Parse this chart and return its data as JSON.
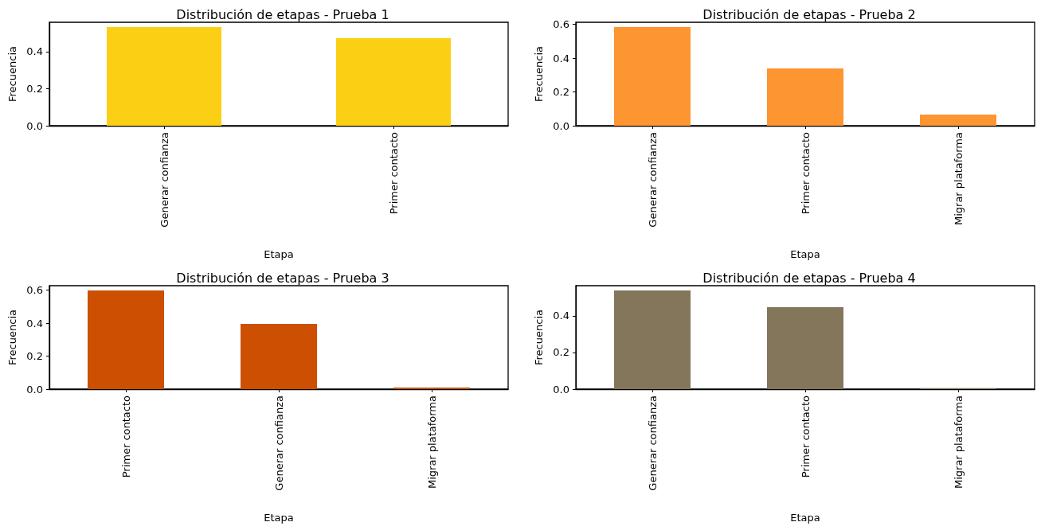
{
  "chart_data": [
    {
      "type": "bar",
      "title": "Distribución de etapas - Prueba 1",
      "xlabel": "Etapa",
      "ylabel": "Frecuencia",
      "categories": [
        "Generar confianza",
        "Primer contacto"
      ],
      "values": [
        0.533,
        0.473
      ],
      "color": "#fbcf14",
      "ylim": [
        0,
        0.559
      ],
      "yticks": [
        {
          "value": 0,
          "label": "0.0"
        },
        {
          "value": 0.2,
          "label": "0.2"
        },
        {
          "value": 0.4,
          "label": "0.4"
        }
      ]
    },
    {
      "type": "bar",
      "title": "Distribución de etapas - Prueba 2",
      "xlabel": "Etapa",
      "ylabel": "Frecuencia",
      "categories": [
        "Generar confianza",
        "Primer contacto",
        "Migrar plataforma"
      ],
      "values": [
        0.584,
        0.339,
        0.066
      ],
      "color": "#fd9531",
      "ylim": [
        0,
        0.612
      ],
      "yticks": [
        {
          "value": 0,
          "label": "0.0"
        },
        {
          "value": 0.2,
          "label": "0.2"
        },
        {
          "value": 0.4,
          "label": "0.4"
        },
        {
          "value": 0.6,
          "label": "0.6"
        }
      ]
    },
    {
      "type": "bar",
      "title": "Distribución de etapas - Prueba 3",
      "xlabel": "Etapa",
      "ylabel": "Frecuencia",
      "categories": [
        "Primer contacto",
        "Generar confianza",
        "Migrar plataforma"
      ],
      "values": [
        0.598,
        0.395,
        0.01
      ],
      "color": "#cc4f02",
      "ylim": [
        0,
        0.627
      ],
      "yticks": [
        {
          "value": 0,
          "label": "0.0"
        },
        {
          "value": 0.2,
          "label": "0.2"
        },
        {
          "value": 0.4,
          "label": "0.4"
        },
        {
          "value": 0.6,
          "label": "0.6"
        }
      ]
    },
    {
      "type": "bar",
      "title": "Distribución de etapas - Prueba 4",
      "xlabel": "Etapa",
      "ylabel": "Frecuencia",
      "categories": [
        "Generar confianza",
        "Primer contacto",
        "Migrar plataforma"
      ],
      "values": [
        0.539,
        0.448,
        0.005
      ],
      "color": "#83765b",
      "ylim": [
        0,
        0.565
      ],
      "yticks": [
        {
          "value": 0,
          "label": "0.0"
        },
        {
          "value": 0.2,
          "label": "0.2"
        },
        {
          "value": 0.4,
          "label": "0.4"
        }
      ]
    }
  ]
}
